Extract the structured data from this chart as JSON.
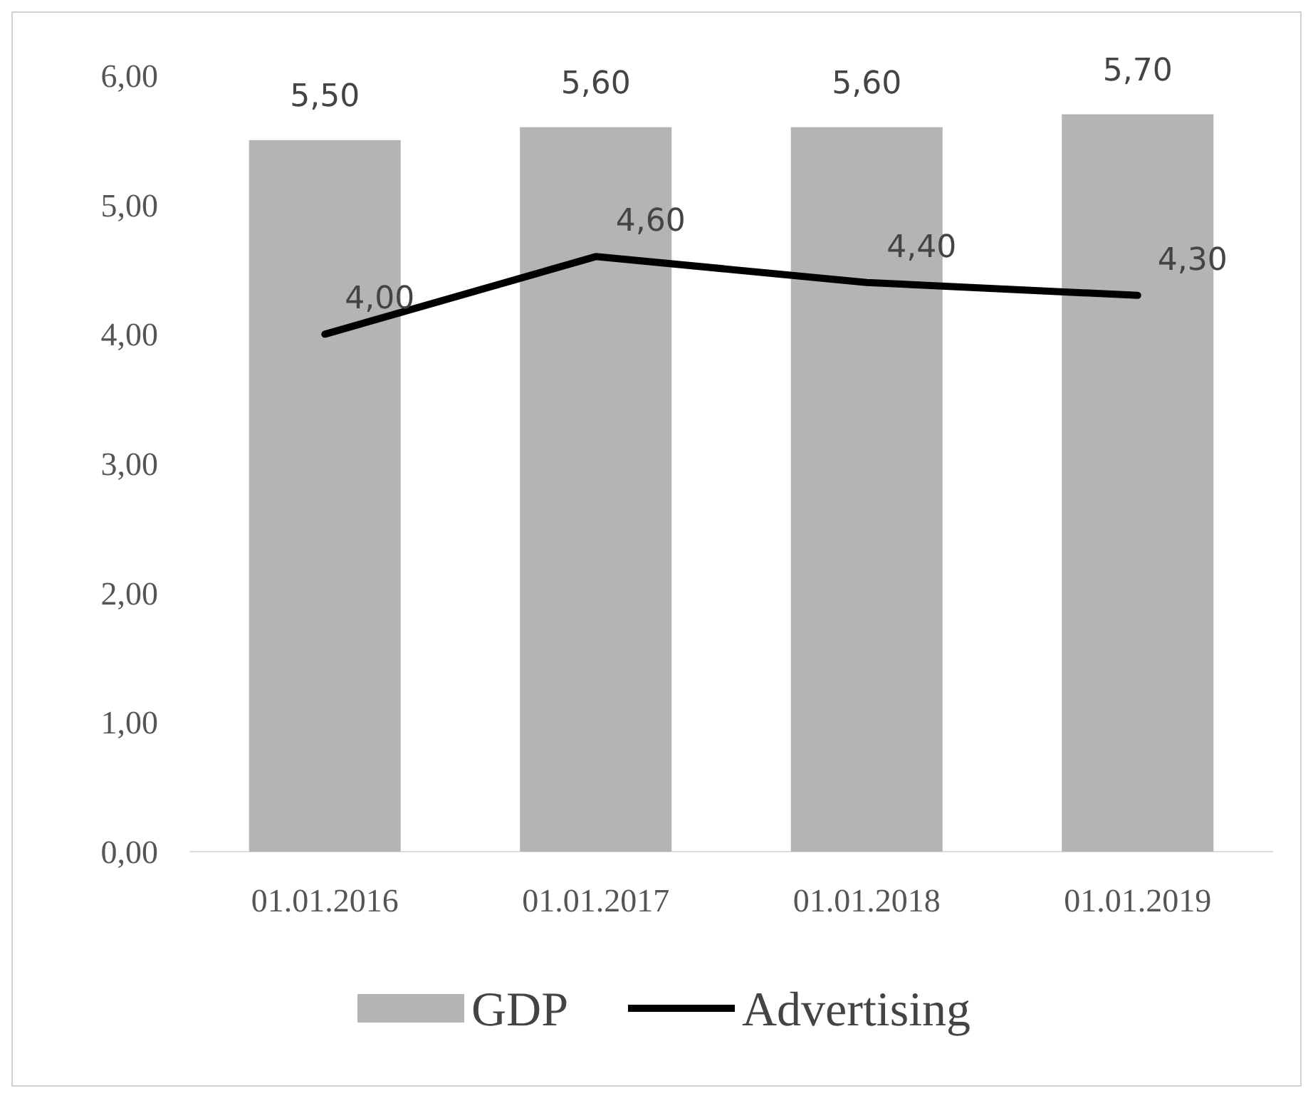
{
  "chart_data": {
    "type": "bar",
    "categories": [
      "01.01.2016",
      "01.01.2017",
      "01.01.2018",
      "01.01.2019"
    ],
    "series": [
      {
        "name": "GDP",
        "color": "#b4b4b4",
        "values": [
          5.5,
          5.6,
          5.6,
          5.7
        ],
        "value_labels": [
          "5,50",
          "5,60",
          "5,60",
          "5,70"
        ]
      },
      {
        "name": "Advertising",
        "type": "line",
        "color": "#000000",
        "values": [
          4.0,
          4.6,
          4.4,
          4.3
        ],
        "value_labels": [
          "4,00",
          "4,60",
          "4,40",
          "4,30"
        ]
      }
    ],
    "ylim": [
      0,
      6
    ],
    "yticks": [
      {
        "value": 0,
        "label": "0,00"
      },
      {
        "value": 1,
        "label": "1,00"
      },
      {
        "value": 2,
        "label": "2,00"
      },
      {
        "value": 3,
        "label": "3,00"
      },
      {
        "value": 4,
        "label": "4,00"
      },
      {
        "value": 5,
        "label": "5,00"
      },
      {
        "value": 6,
        "label": "6,00"
      }
    ],
    "grid": false,
    "legend": "bottom",
    "marker": "none",
    "line_style": "solid"
  }
}
